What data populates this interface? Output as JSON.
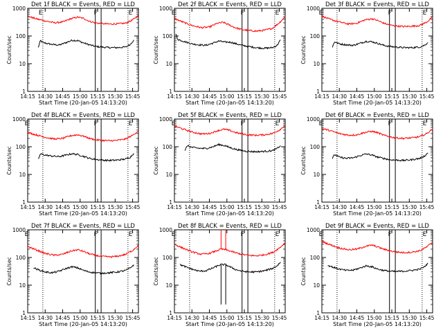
{
  "xtick_labels": [
    "14:15",
    "14:30",
    "14:45",
    "15:00",
    "15:15",
    "15:30",
    "15:45"
  ],
  "xticks_minutes": [
    15,
    30,
    45,
    60,
    75,
    90,
    105
  ],
  "xlabel": "Start Time (20-Jan-05 14:13:20)",
  "ylabel": "Counts/sec",
  "ytick_labels": [
    "1",
    "10",
    "100",
    "1000"
  ],
  "ylim": [
    1,
    1000
  ],
  "yscale": "log",
  "xlim_minutes": [
    15,
    110
  ],
  "colors": {
    "events": "#000000",
    "lld": "#ff0000"
  },
  "chart_data": [
    {
      "type": "line",
      "title": "Det 1f BLACK = Events, RED = LLD",
      "markers": [
        {
          "x": 28,
          "label": "E"
        },
        {
          "x": 105,
          "label": "E"
        },
        {
          "x": 73,
          "label": "F"
        },
        {
          "x": 78,
          "label": ""
        }
      ],
      "dotted_x": [
        28,
        101
      ],
      "series": [
        {
          "color": "events",
          "x": [
            24,
            26,
            28,
            35,
            42,
            48,
            53,
            58,
            63,
            68,
            73,
            78,
            85,
            92,
            99,
            103,
            106
          ],
          "y": [
            38,
            68,
            58,
            50,
            47,
            58,
            70,
            68,
            56,
            48,
            42,
            40,
            38,
            38,
            40,
            50,
            72
          ]
        },
        {
          "color": "lld",
          "x": [
            15,
            22,
            30,
            38,
            45,
            52,
            58,
            63,
            68,
            73,
            78,
            85,
            92,
            99,
            105,
            110
          ],
          "y": [
            520,
            420,
            350,
            300,
            320,
            420,
            480,
            430,
            340,
            300,
            280,
            270,
            275,
            290,
            380,
            560
          ]
        }
      ]
    },
    {
      "type": "line",
      "title": "Det 2f BLACK = Events, RED = LLD",
      "markers": [
        {
          "x": 16,
          "label": "E"
        },
        {
          "x": 105,
          "label": "E"
        },
        {
          "x": 73,
          "label": "F"
        },
        {
          "x": 78,
          "label": ""
        }
      ],
      "dotted_x": [
        28,
        101
      ],
      "series": [
        {
          "color": "events",
          "x": [
            16,
            18,
            24,
            30,
            36,
            42,
            48,
            53,
            58,
            63,
            68,
            73,
            78,
            85,
            92,
            99,
            103,
            106
          ],
          "y": [
            120,
            75,
            62,
            52,
            48,
            46,
            55,
            66,
            60,
            60,
            52,
            46,
            42,
            38,
            36,
            38,
            46,
            72
          ]
        },
        {
          "color": "lld",
          "x": [
            15,
            22,
            30,
            38,
            45,
            52,
            57,
            62,
            67,
            73,
            78,
            85,
            92,
            99,
            105,
            110
          ],
          "y": [
            430,
            320,
            240,
            200,
            210,
            290,
            310,
            250,
            200,
            170,
            160,
            150,
            160,
            190,
            300,
            500
          ]
        }
      ]
    },
    {
      "type": "line",
      "title": "Det 3f BLACK = Events, RED = LLD",
      "markers": [
        {
          "x": 16,
          "label": "E"
        },
        {
          "x": 105,
          "label": "E"
        },
        {
          "x": 73,
          "label": "F"
        },
        {
          "x": 78,
          "label": ""
        }
      ],
      "dotted_x": [
        28,
        101
      ],
      "series": [
        {
          "color": "events",
          "x": [
            24,
            26,
            30,
            36,
            42,
            48,
            53,
            58,
            63,
            68,
            73,
            78,
            85,
            92,
            99,
            103,
            106
          ],
          "y": [
            40,
            62,
            52,
            48,
            46,
            55,
            64,
            62,
            54,
            46,
            42,
            40,
            38,
            38,
            40,
            46,
            58
          ]
        },
        {
          "color": "lld",
          "x": [
            15,
            22,
            30,
            38,
            45,
            52,
            58,
            63,
            68,
            73,
            78,
            85,
            92,
            99,
            105,
            110
          ],
          "y": [
            520,
            400,
            320,
            270,
            290,
            380,
            420,
            360,
            290,
            250,
            230,
            220,
            225,
            240,
            320,
            480
          ]
        }
      ]
    },
    {
      "type": "line",
      "title": "Det 4f BLACK = Events, RED = LLD",
      "markers": [
        {
          "x": 16,
          "label": "E"
        },
        {
          "x": 105,
          "label": "E"
        },
        {
          "x": 73,
          "label": "F"
        },
        {
          "x": 78,
          "label": ""
        }
      ],
      "dotted_x": [
        28,
        101
      ],
      "series": [
        {
          "color": "events",
          "x": [
            24,
            26,
            30,
            36,
            42,
            48,
            53,
            58,
            63,
            68,
            73,
            78,
            85,
            92,
            99,
            103,
            106
          ],
          "y": [
            35,
            55,
            50,
            46,
            44,
            50,
            56,
            52,
            45,
            38,
            35,
            33,
            32,
            33,
            36,
            42,
            58
          ]
        },
        {
          "color": "lld",
          "x": [
            15,
            22,
            30,
            38,
            45,
            52,
            58,
            63,
            68,
            73,
            78,
            85,
            92,
            99,
            105,
            110
          ],
          "y": [
            330,
            270,
            220,
            190,
            200,
            250,
            270,
            240,
            200,
            180,
            170,
            165,
            170,
            190,
            260,
            380
          ]
        }
      ]
    },
    {
      "type": "line",
      "title": "Det 5f BLACK = Events, RED = LLD",
      "markers": [
        {
          "x": 16,
          "label": "E"
        },
        {
          "x": 105,
          "label": "E"
        },
        {
          "x": 73,
          "label": "F"
        },
        {
          "x": 78,
          "label": ""
        }
      ],
      "dotted_x": [
        28,
        101
      ],
      "series": [
        {
          "color": "events",
          "x": [
            24,
            26,
            30,
            36,
            42,
            48,
            53,
            58,
            63,
            68,
            73,
            78,
            85,
            92,
            99,
            103,
            106
          ],
          "y": [
            70,
            110,
            95,
            88,
            86,
            100,
            120,
            110,
            92,
            80,
            72,
            68,
            66,
            68,
            72,
            86,
            110
          ]
        },
        {
          "color": "lld",
          "x": [
            15,
            22,
            30,
            38,
            45,
            52,
            58,
            63,
            68,
            73,
            78,
            85,
            92,
            99,
            105,
            110
          ],
          "y": [
            560,
            440,
            340,
            290,
            300,
            380,
            430,
            380,
            320,
            290,
            270,
            260,
            270,
            300,
            400,
            600
          ]
        }
      ]
    },
    {
      "type": "line",
      "title": "Det 6f BLACK = Events, RED = LLD",
      "markers": [
        {
          "x": 16,
          "label": "E"
        },
        {
          "x": 105,
          "label": "E"
        },
        {
          "x": 73,
          "label": "F"
        },
        {
          "x": 78,
          "label": ""
        }
      ],
      "dotted_x": [
        28,
        101
      ],
      "series": [
        {
          "color": "events",
          "x": [
            24,
            26,
            30,
            36,
            42,
            48,
            53,
            58,
            63,
            68,
            73,
            78,
            85,
            92,
            99,
            103,
            106
          ],
          "y": [
            38,
            52,
            42,
            38,
            40,
            48,
            55,
            50,
            42,
            38,
            34,
            33,
            32,
            34,
            38,
            46,
            60
          ]
        },
        {
          "color": "lld",
          "x": [
            15,
            22,
            30,
            38,
            45,
            52,
            58,
            63,
            68,
            73,
            78,
            85,
            92,
            99,
            105,
            110
          ],
          "y": [
            460,
            380,
            300,
            260,
            270,
            330,
            360,
            320,
            260,
            230,
            210,
            200,
            210,
            230,
            300,
            440
          ]
        }
      ]
    },
    {
      "type": "line",
      "title": "Det 7f BLACK = Events, RED = LLD",
      "markers": [
        {
          "x": 16,
          "label": "E"
        },
        {
          "x": 105,
          "label": "E"
        },
        {
          "x": 73,
          "label": "F"
        },
        {
          "x": 78,
          "label": ""
        }
      ],
      "dotted_x": [
        28,
        101
      ],
      "series": [
        {
          "color": "events",
          "x": [
            20,
            25,
            30,
            36,
            42,
            48,
            53,
            58,
            63,
            68,
            73,
            78,
            85,
            92,
            99,
            103,
            106
          ],
          "y": [
            42,
            35,
            30,
            28,
            32,
            40,
            46,
            42,
            34,
            30,
            28,
            27,
            28,
            30,
            34,
            42,
            55
          ]
        },
        {
          "color": "lld",
          "x": [
            15,
            22,
            30,
            38,
            45,
            52,
            58,
            63,
            68,
            73,
            78,
            85,
            92,
            99,
            105,
            110
          ],
          "y": [
            250,
            190,
            140,
            120,
            130,
            170,
            190,
            165,
            135,
            120,
            110,
            105,
            110,
            130,
            180,
            280
          ]
        }
      ]
    },
    {
      "type": "line",
      "title": "Det 8f BLACK = Events, RED = LLD",
      "markers": [
        {
          "x": 16,
          "label": "E"
        },
        {
          "x": 105,
          "label": "E"
        },
        {
          "x": 73,
          "label": "F"
        },
        {
          "x": 78,
          "label": ""
        }
      ],
      "dotted_x": [
        28,
        101
      ],
      "spike": {
        "x": [
          55,
          59
        ],
        "red_top": 1000,
        "black_bottom": 2
      },
      "series": [
        {
          "color": "events",
          "x": [
            20,
            25,
            30,
            36,
            42,
            48,
            53,
            55,
            59,
            63,
            68,
            73,
            78,
            85,
            92,
            99,
            103,
            106
          ],
          "y": [
            55,
            45,
            38,
            32,
            33,
            42,
            52,
            55,
            55,
            45,
            36,
            32,
            30,
            30,
            33,
            40,
            50,
            68
          ]
        },
        {
          "color": "lld",
          "x": [
            15,
            22,
            30,
            38,
            45,
            52,
            55,
            59,
            63,
            68,
            73,
            78,
            85,
            92,
            99,
            105,
            110
          ],
          "y": [
            300,
            220,
            160,
            130,
            140,
            180,
            200,
            190,
            170,
            145,
            130,
            120,
            115,
            125,
            150,
            220,
            340
          ]
        }
      ]
    },
    {
      "type": "line",
      "title": "Det 9f BLACK = Events, RED = LLD",
      "markers": [
        {
          "x": 16,
          "label": "E"
        },
        {
          "x": 105,
          "label": "E"
        },
        {
          "x": 73,
          "label": "F"
        },
        {
          "x": 78,
          "label": ""
        }
      ],
      "dotted_x": [
        28,
        101
      ],
      "series": [
        {
          "color": "events",
          "x": [
            20,
            25,
            30,
            36,
            42,
            48,
            53,
            58,
            63,
            68,
            73,
            78,
            85,
            92,
            99,
            103,
            106
          ],
          "y": [
            52,
            44,
            38,
            34,
            35,
            42,
            50,
            46,
            38,
            34,
            32,
            31,
            32,
            34,
            38,
            46,
            62
          ]
        },
        {
          "color": "lld",
          "x": [
            15,
            22,
            30,
            38,
            45,
            52,
            58,
            63,
            68,
            73,
            78,
            85,
            92,
            99,
            105,
            110
          ],
          "y": [
            380,
            290,
            220,
            190,
            200,
            250,
            280,
            240,
            200,
            175,
            160,
            150,
            155,
            175,
            240,
            360
          ]
        }
      ]
    }
  ]
}
